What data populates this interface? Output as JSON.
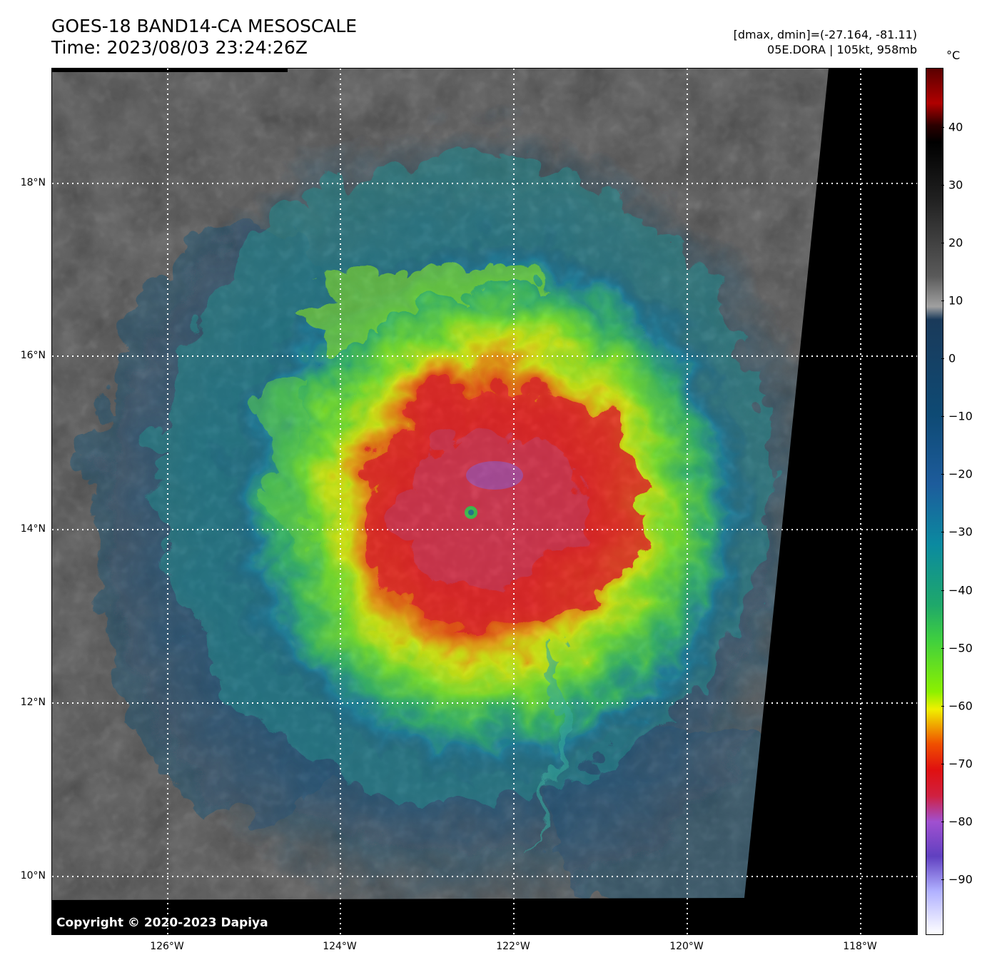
{
  "header": {
    "title_line1": "GOES-18 BAND14-CA MESOSCALE",
    "title_line2": "Time: 2023/08/03 23:24:26Z",
    "range_text": "[dmax, dmin]=(-27.164, -81.11)",
    "storm_text": "05E.DORA | 105kt, 958mb"
  },
  "map": {
    "lat_labels": [
      "18°N",
      "16°N",
      "14°N",
      "12°N",
      "10°N"
    ],
    "lon_labels": [
      "126°W",
      "124°W",
      "122°W",
      "120°W",
      "118°W"
    ],
    "copyright": "Copyright © 2020-2023 Dapiya"
  },
  "colorbar": {
    "unit": "°C",
    "ticks": [
      "40",
      "30",
      "20",
      "10",
      "0",
      "−10",
      "−20",
      "−30",
      "−40",
      "−50",
      "−60",
      "−70",
      "−80",
      "−90"
    ]
  }
}
